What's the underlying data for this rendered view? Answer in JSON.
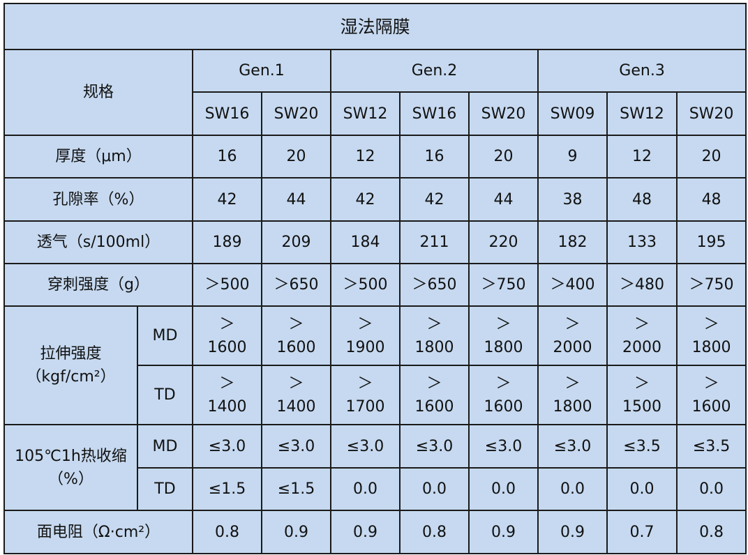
{
  "title": "湿法隔膜",
  "spec_label": "规格",
  "generations": [
    {
      "label": "Gen.1",
      "span": 2
    },
    {
      "label": "Gen.2",
      "span": 3
    },
    {
      "label": "Gen.3",
      "span": 3
    }
  ],
  "models": [
    "SW16",
    "SW20",
    "SW12",
    "SW16",
    "SW20",
    "SW09",
    "SW12",
    "SW20"
  ],
  "rows": {
    "thickness": {
      "label": "厚度（μm）",
      "values": [
        "16",
        "20",
        "12",
        "16",
        "20",
        "9",
        "12",
        "20"
      ]
    },
    "porosity": {
      "label": "孔隙率（%）",
      "values": [
        "42",
        "44",
        "42",
        "42",
        "44",
        "38",
        "48",
        "48"
      ]
    },
    "permeability": {
      "label": "透气（s/100ml）",
      "values": [
        "189",
        "209",
        "184",
        "211",
        "220",
        "182",
        "133",
        "195"
      ]
    },
    "puncture": {
      "label": "穿刺强度（g）",
      "values": [
        "＞500",
        "＞650",
        "＞500",
        "＞650",
        "＞750",
        "＞400",
        "＞480",
        "＞750"
      ]
    },
    "tensile": {
      "label": "拉伸强度（kgf/cm²）",
      "md": {
        "label": "MD",
        "values": [
          "＞\n1600",
          "＞\n1600",
          "＞\n1900",
          "＞\n1800",
          "＞\n1800",
          "＞\n2000",
          "＞\n2000",
          "＞\n1800"
        ]
      },
      "td": {
        "label": "TD",
        "values": [
          "＞\n1400",
          "＞\n1400",
          "＞\n1700",
          "＞\n1600",
          "＞\n1600",
          "＞\n1800",
          "＞\n1500",
          "＞\n1600"
        ]
      }
    },
    "shrinkage": {
      "label": "105℃1h热收缩（%）",
      "md": {
        "label": "MD",
        "values": [
          "≤3.0",
          "≤3.0",
          "≤3.0",
          "≤3.0",
          "≤3.0",
          "≤3.0",
          "≤3.5",
          "≤3.5"
        ]
      },
      "td": {
        "label": "TD",
        "values": [
          "≤1.5",
          "≤1.5",
          "0.0",
          "0.0",
          "0.0",
          "0.0",
          "0.0",
          "0.0"
        ]
      }
    },
    "resistance": {
      "label": "面电阻（Ω·cm²）",
      "values": [
        "0.8",
        "0.9",
        "0.9",
        "0.8",
        "0.9",
        "0.9",
        "0.7",
        "0.8"
      ]
    }
  },
  "colors": {
    "cell_background": "#c6d9f0",
    "border": "#1a1a1a"
  }
}
